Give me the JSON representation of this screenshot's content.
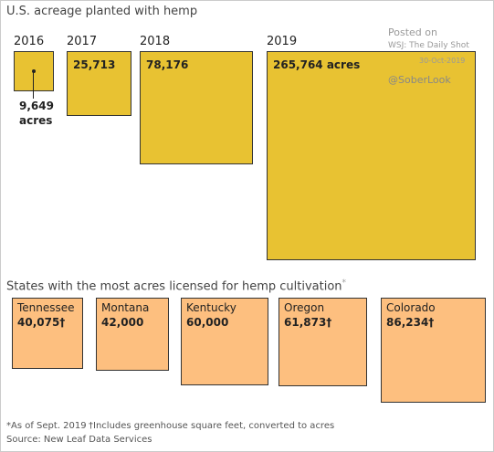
{
  "chart_data": [
    {
      "type": "square",
      "title": "U.S. acreage planted with hemp",
      "categories": [
        "2016",
        "2017",
        "2018",
        "2019"
      ],
      "values": [
        9649,
        25713,
        78176,
        265764
      ],
      "value_labels": [
        "9,649 acres",
        "25,713",
        "78,176",
        "265,764 acres"
      ],
      "color": "#e8c232",
      "annotations": [
        "Posted on",
        "WSJ: The Daily Shot",
        "30-Oct-2019",
        "@SoberLook"
      ]
    },
    {
      "type": "square",
      "title": "States with the most acres licensed for hemp cultivation",
      "title_note": "*",
      "categories": [
        "Tennessee",
        "Montana",
        "Kentucky",
        "Oregon",
        "Colorado"
      ],
      "values": [
        40075,
        42000,
        60000,
        61873,
        86234
      ],
      "value_labels": [
        "40,075†",
        "42,000",
        "60,000",
        "61,873†",
        "86,234†"
      ],
      "color": "#fdbf7f",
      "notes": [
        "*As of Sept. 2019",
        "†Includes greenhouse square feet, converted to acres",
        "Source: New Leaf Data Services"
      ]
    }
  ]
}
